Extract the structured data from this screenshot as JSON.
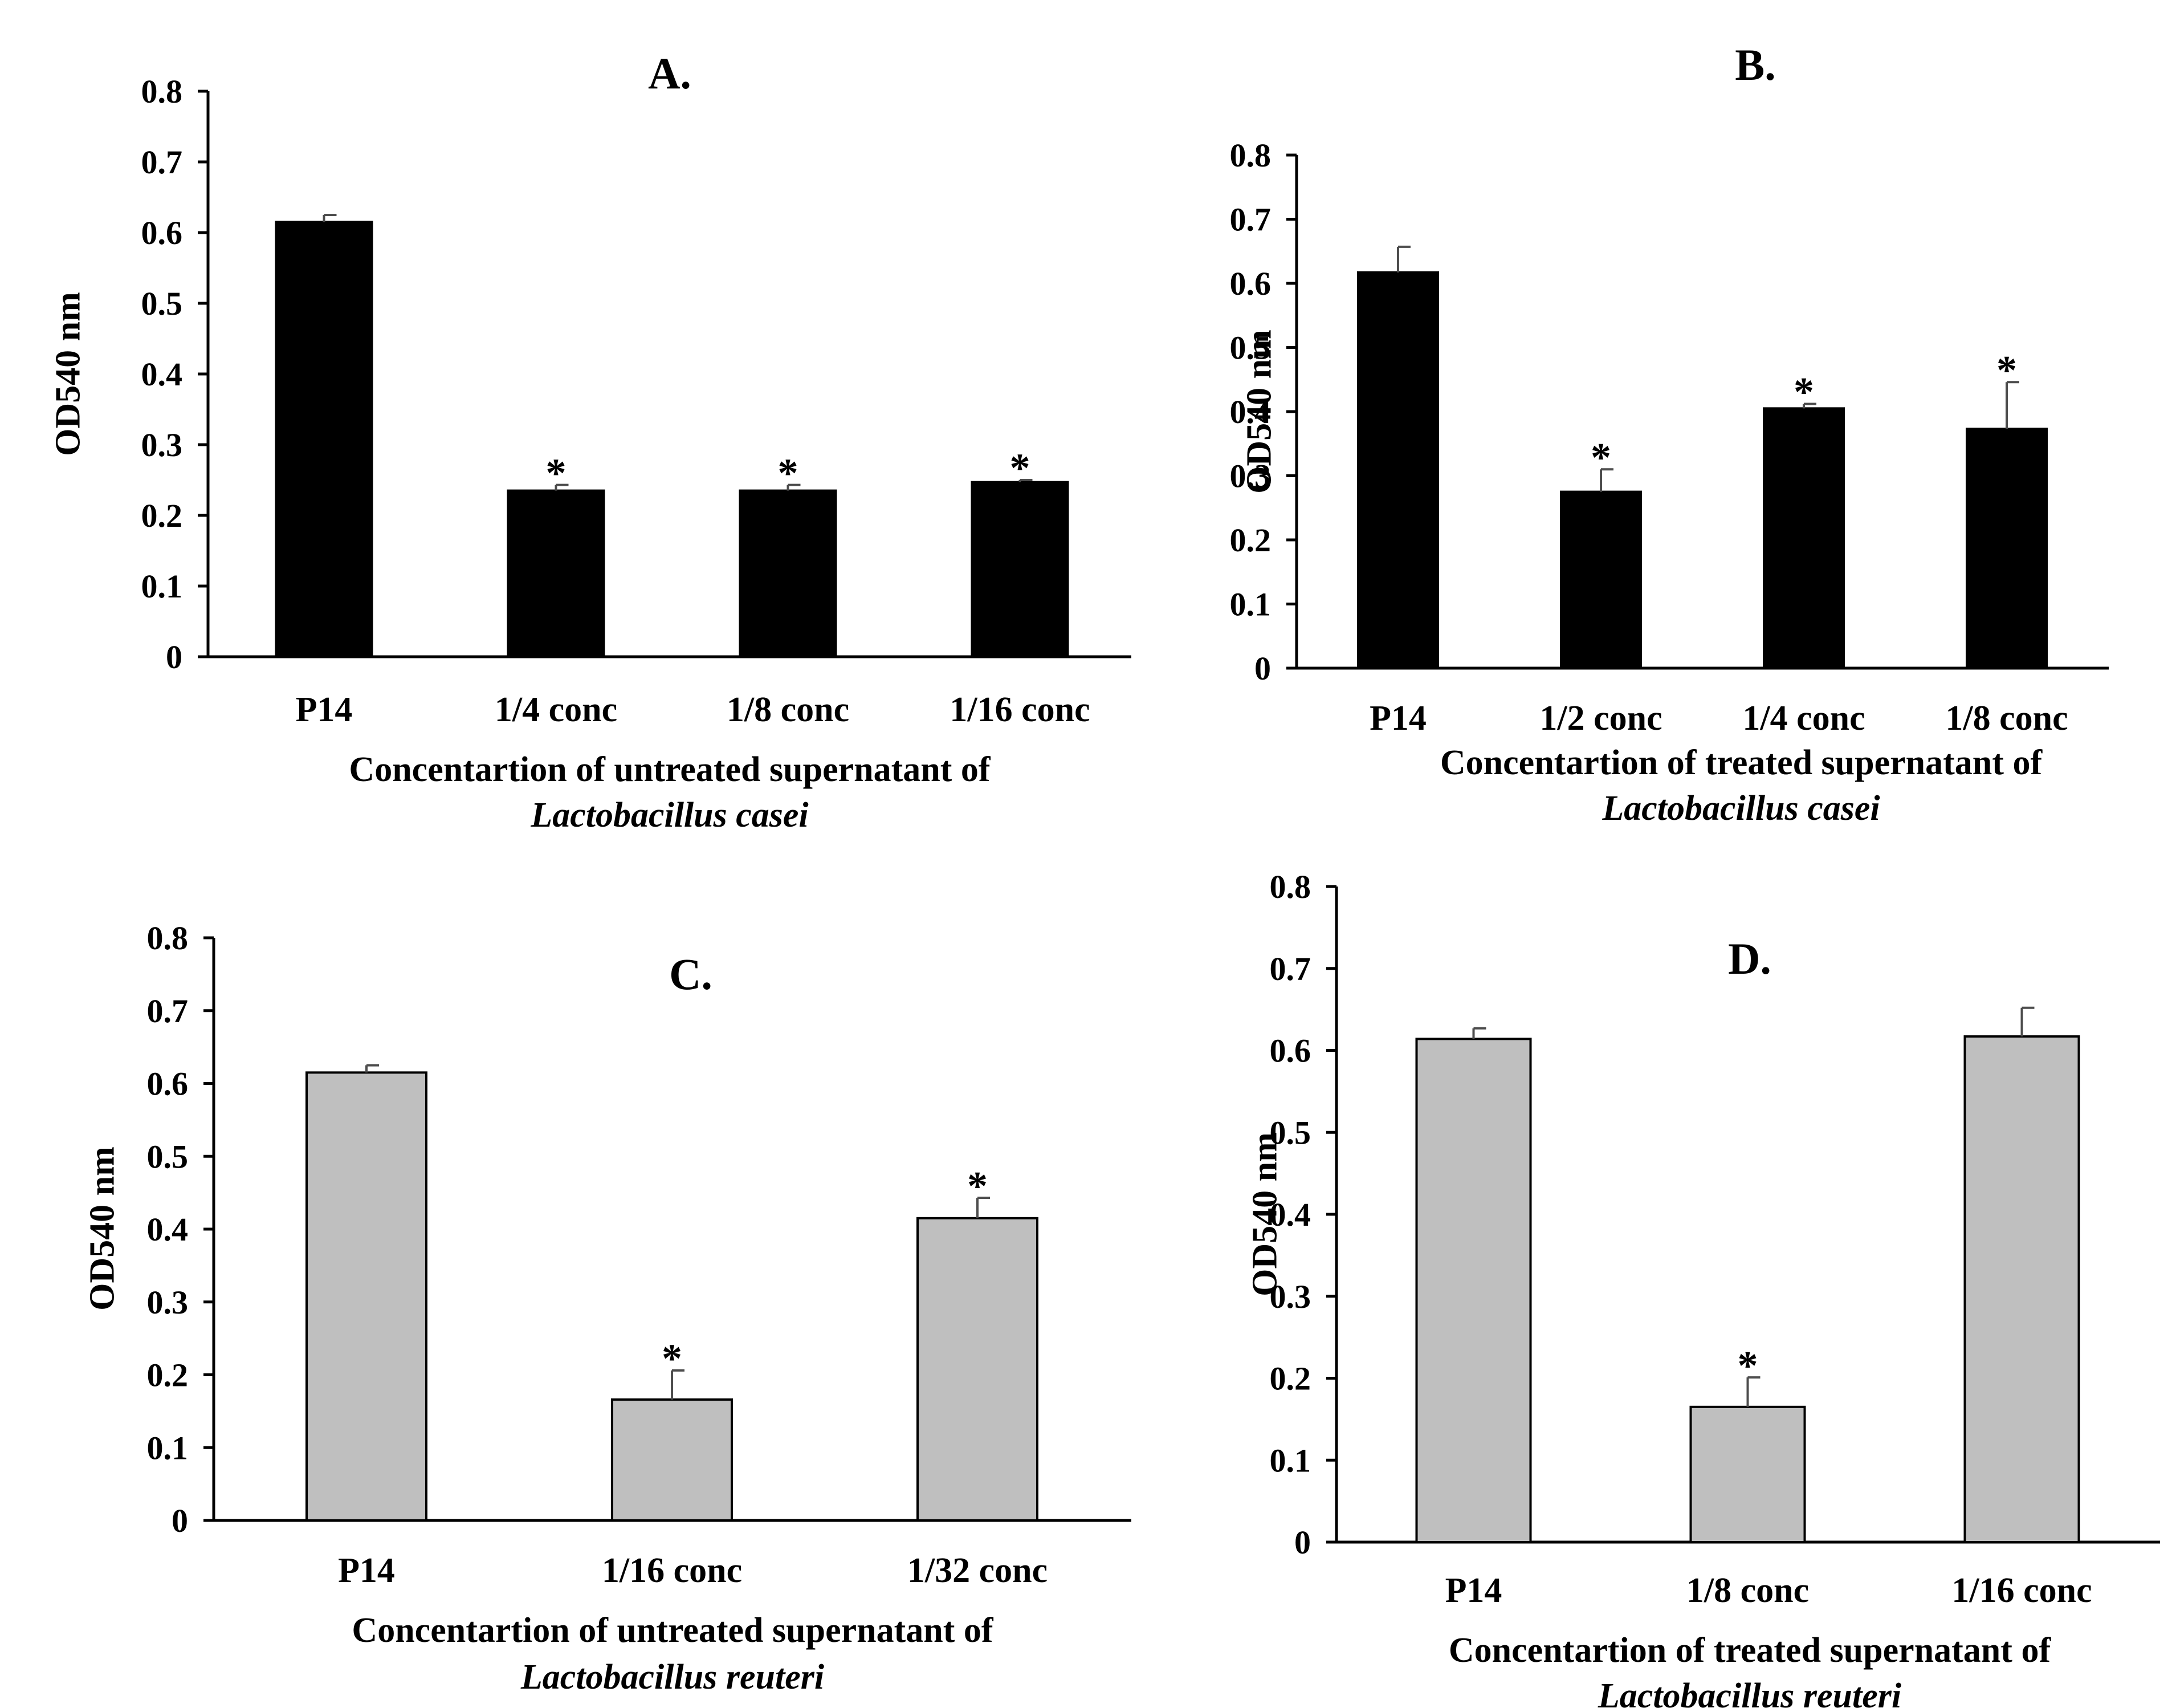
{
  "chart_data": [
    {
      "type": "bar",
      "panel": "A.",
      "title": "A.",
      "ylabel": "OD540 nm",
      "xlabel": "Concentartion of  untreated supernatant  of",
      "xlabel_species": "Lactobacillus casei",
      "ylim": [
        0,
        0.8
      ],
      "yticks": [
        "0",
        "0.1",
        "0.2",
        "0.3",
        "0.4",
        "0.5",
        "0.6",
        "0.7",
        "0.8"
      ],
      "categories": [
        "P14",
        "1/4 conc",
        "1/8 conc",
        "1/16 conc"
      ],
      "values": [
        0.615,
        0.235,
        0.235,
        0.247
      ],
      "errors": [
        0.01,
        0.008,
        0.008,
        0.003
      ],
      "significance": [
        "",
        "*",
        "*",
        "*"
      ],
      "bar_color": "#000000"
    },
    {
      "type": "bar",
      "panel": "B.",
      "title": "B.",
      "ylabel": "OD540 nm",
      "xlabel": "Concentartion of treated supernatant  of",
      "xlabel_species": "Lactobacillus casei",
      "ylim": [
        0,
        0.8
      ],
      "yticks": [
        "0",
        "0.1",
        "0.2",
        "0.3",
        "0.4",
        "0.5",
        "0.6",
        "0.7",
        "0.8"
      ],
      "categories": [
        "P14",
        "1/2 conc",
        "1/4 conc",
        "1/8 conc"
      ],
      "values": [
        0.617,
        0.275,
        0.405,
        0.373
      ],
      "errors": [
        0.04,
        0.035,
        0.007,
        0.073
      ],
      "significance": [
        "",
        "*",
        "*",
        "*"
      ],
      "bar_color": "#000000"
    },
    {
      "type": "bar",
      "panel": "C.",
      "title": "C.",
      "ylabel": "OD540 nm",
      "xlabel": "Concentartion of  untreated supernatant  of",
      "xlabel_species": "Lactobacillus reuteri",
      "ylim": [
        0,
        0.8
      ],
      "yticks": [
        "0",
        "0.1",
        "0.2",
        "0.3",
        "0.4",
        "0.5",
        "0.6",
        "0.7",
        "0.8"
      ],
      "categories": [
        "P14",
        "1/16 conc",
        "1/32 conc"
      ],
      "values": [
        0.615,
        0.166,
        0.415
      ],
      "errors": [
        0.01,
        0.04,
        0.028
      ],
      "significance": [
        "",
        "*",
        "*"
      ],
      "bar_color": "#bfbfbf"
    },
    {
      "type": "bar",
      "panel": "D.",
      "title": "D.",
      "ylabel": "OD540 nm",
      "xlabel": "Concentartion of treated supernatant  of",
      "xlabel_species": "Lactobacillus reuteri",
      "ylim": [
        0,
        0.8
      ],
      "yticks": [
        "0",
        "0.1",
        "0.2",
        "0.3",
        "0.4",
        "0.5",
        "0.6",
        "0.7",
        "0.8"
      ],
      "categories": [
        "P14",
        "1/8 conc",
        "1/16 conc"
      ],
      "values": [
        0.614,
        0.165,
        0.617
      ],
      "errors": [
        0.013,
        0.036,
        0.035
      ],
      "significance": [
        "",
        "*",
        ""
      ],
      "bar_color": "#bfbfbf"
    }
  ]
}
